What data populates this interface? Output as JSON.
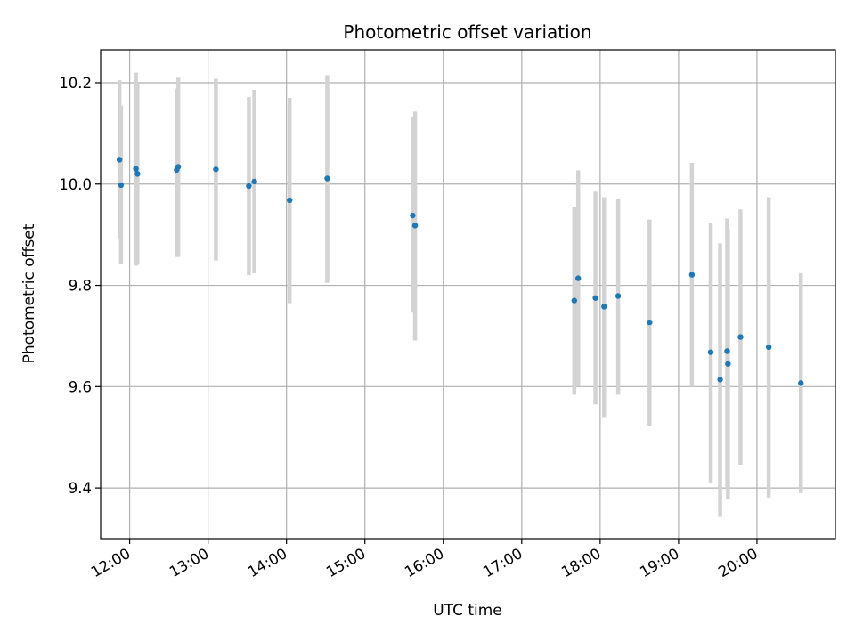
{
  "chart_data": {
    "type": "scatter",
    "title": "Photometric offset variation",
    "xlabel": "UTC time",
    "ylabel": "Photometric offset",
    "x_unit": "hours UTC",
    "xlim": [
      11.63,
      21.0
    ],
    "ylim": [
      9.3,
      10.265
    ],
    "x_ticks": [
      {
        "value": 12,
        "label": "12:00"
      },
      {
        "value": 13,
        "label": "13:00"
      },
      {
        "value": 14,
        "label": "14:00"
      },
      {
        "value": 15,
        "label": "15:00"
      },
      {
        "value": 16,
        "label": "16:00"
      },
      {
        "value": 17,
        "label": "17:00"
      },
      {
        "value": 18,
        "label": "18:00"
      },
      {
        "value": 19,
        "label": "19:00"
      },
      {
        "value": 20,
        "label": "20:00"
      }
    ],
    "y_ticks": [
      {
        "value": 9.4,
        "label": "9.4"
      },
      {
        "value": 9.6,
        "label": "9.6"
      },
      {
        "value": 9.8,
        "label": "9.8"
      },
      {
        "value": 10.0,
        "label": "10.0"
      },
      {
        "value": 10.2,
        "label": "10.2"
      }
    ],
    "grid": true,
    "colors": {
      "points": "#1f77b4",
      "errorbars": "#d3d3d3",
      "grid": "#b0b0b0"
    },
    "points": [
      {
        "x": 11.87,
        "y": 10.048,
        "ylo": 9.893,
        "yhi": 10.205
      },
      {
        "x": 11.89,
        "y": 9.998,
        "ylo": 9.842,
        "yhi": 10.155
      },
      {
        "x": 12.08,
        "y": 10.03,
        "ylo": 9.839,
        "yhi": 10.22
      },
      {
        "x": 12.1,
        "y": 10.02,
        "ylo": 9.841,
        "yhi": 10.198
      },
      {
        "x": 12.6,
        "y": 10.028,
        "ylo": 9.856,
        "yhi": 10.188
      },
      {
        "x": 12.62,
        "y": 10.034,
        "ylo": 9.856,
        "yhi": 10.21
      },
      {
        "x": 13.1,
        "y": 10.029,
        "ylo": 9.849,
        "yhi": 10.208
      },
      {
        "x": 13.52,
        "y": 9.996,
        "ylo": 9.82,
        "yhi": 10.172
      },
      {
        "x": 13.59,
        "y": 10.005,
        "ylo": 9.824,
        "yhi": 10.186
      },
      {
        "x": 14.04,
        "y": 9.968,
        "ylo": 9.765,
        "yhi": 10.17
      },
      {
        "x": 14.52,
        "y": 10.011,
        "ylo": 9.805,
        "yhi": 10.215
      },
      {
        "x": 15.61,
        "y": 9.938,
        "ylo": 9.746,
        "yhi": 10.133
      },
      {
        "x": 15.64,
        "y": 9.918,
        "ylo": 9.691,
        "yhi": 10.143
      },
      {
        "x": 17.67,
        "y": 9.77,
        "ylo": 9.584,
        "yhi": 9.954
      },
      {
        "x": 17.72,
        "y": 9.814,
        "ylo": 9.601,
        "yhi": 10.027
      },
      {
        "x": 17.94,
        "y": 9.775,
        "ylo": 9.565,
        "yhi": 9.985
      },
      {
        "x": 18.05,
        "y": 9.758,
        "ylo": 9.54,
        "yhi": 9.974
      },
      {
        "x": 18.23,
        "y": 9.779,
        "ylo": 9.584,
        "yhi": 9.97
      },
      {
        "x": 18.63,
        "y": 9.727,
        "ylo": 9.523,
        "yhi": 9.93
      },
      {
        "x": 19.17,
        "y": 9.821,
        "ylo": 9.6,
        "yhi": 10.042
      },
      {
        "x": 19.41,
        "y": 9.668,
        "ylo": 9.409,
        "yhi": 9.924
      },
      {
        "x": 19.53,
        "y": 9.614,
        "ylo": 9.343,
        "yhi": 9.883
      },
      {
        "x": 19.62,
        "y": 9.67,
        "ylo": 9.4,
        "yhi": 9.932
      },
      {
        "x": 19.63,
        "y": 9.645,
        "ylo": 9.379,
        "yhi": 9.911
      },
      {
        "x": 19.79,
        "y": 9.698,
        "ylo": 9.446,
        "yhi": 9.95
      },
      {
        "x": 20.15,
        "y": 9.678,
        "ylo": 9.381,
        "yhi": 9.974
      },
      {
        "x": 20.56,
        "y": 9.607,
        "ylo": 9.39,
        "yhi": 9.824
      }
    ]
  }
}
